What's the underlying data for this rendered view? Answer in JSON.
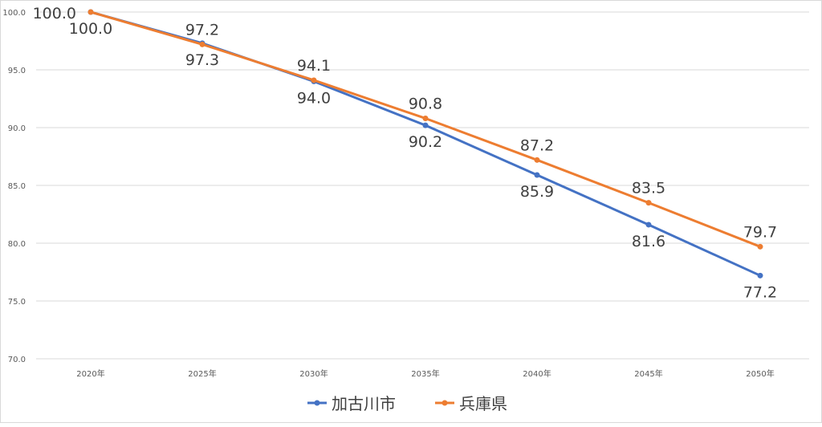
{
  "chart_data": {
    "type": "line",
    "title": "",
    "xlabel": "",
    "ylabel": "",
    "categories": [
      "2020年",
      "2025年",
      "2030年",
      "2035年",
      "2040年",
      "2045年",
      "2050年"
    ],
    "ylim": [
      70,
      100
    ],
    "y_ticks": [
      "70.0",
      "75.0",
      "80.0",
      "85.0",
      "90.0",
      "95.0",
      "100.0"
    ],
    "y_tick_values": [
      70,
      75,
      80,
      85,
      90,
      95,
      100
    ],
    "grid": true,
    "legend_position": "bottom",
    "series": [
      {
        "name": "加古川市",
        "color": "#4472C4",
        "values": [
          100.0,
          97.3,
          94.0,
          90.2,
          85.9,
          81.6,
          77.2
        ],
        "labels": [
          "100.0",
          "97.3",
          "94.0",
          "90.2",
          "85.9",
          "81.6",
          "77.2"
        ],
        "label_position": [
          "left",
          "below",
          "below",
          "below",
          "below",
          "below",
          "below"
        ]
      },
      {
        "name": "兵庫県",
        "color": "#ED7D31",
        "values": [
          100.0,
          97.2,
          94.1,
          90.8,
          87.2,
          83.5,
          79.7
        ],
        "labels": [
          "100.0",
          "97.2",
          "94.1",
          "90.8",
          "87.2",
          "83.5",
          "79.7"
        ],
        "label_position": [
          "below",
          "above",
          "above",
          "above",
          "above",
          "above",
          "above"
        ]
      }
    ]
  }
}
